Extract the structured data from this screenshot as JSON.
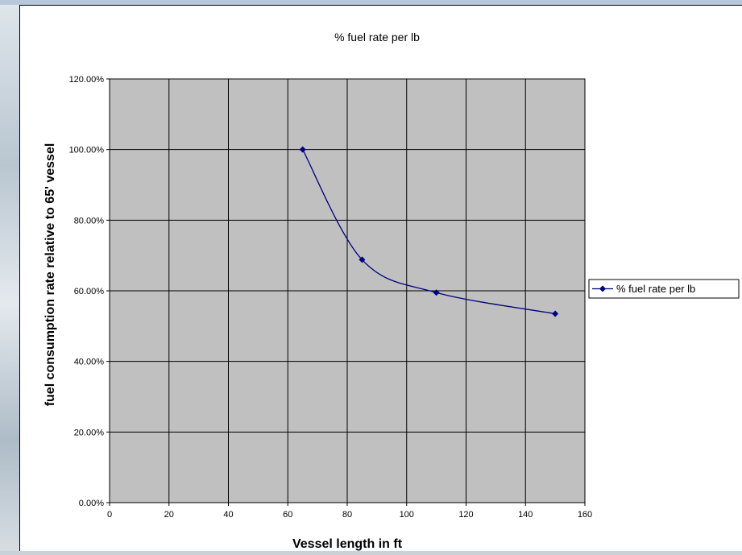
{
  "chart_data": {
    "type": "line",
    "title": "% fuel rate per lb",
    "xlabel": "Vessel length in ft",
    "ylabel": "fuel consumption rate relative to 65' vessel",
    "xlim": [
      0,
      160
    ],
    "ylim": [
      0,
      1.2
    ],
    "x_ticks": [
      "0",
      "20",
      "40",
      "60",
      "80",
      "100",
      "120",
      "140",
      "160"
    ],
    "y_ticks": [
      "0.00%",
      "20.00%",
      "40.00%",
      "60.00%",
      "80.00%",
      "100.00%",
      "120.00%"
    ],
    "grid": true,
    "legend_position": "right",
    "series": [
      {
        "name": "% fuel rate per lb",
        "color": "#000080",
        "x": [
          65,
          85,
          110,
          150
        ],
        "y": [
          1.0,
          0.688,
          0.595,
          0.535
        ]
      }
    ],
    "plot_background": "#c0c0c0"
  }
}
